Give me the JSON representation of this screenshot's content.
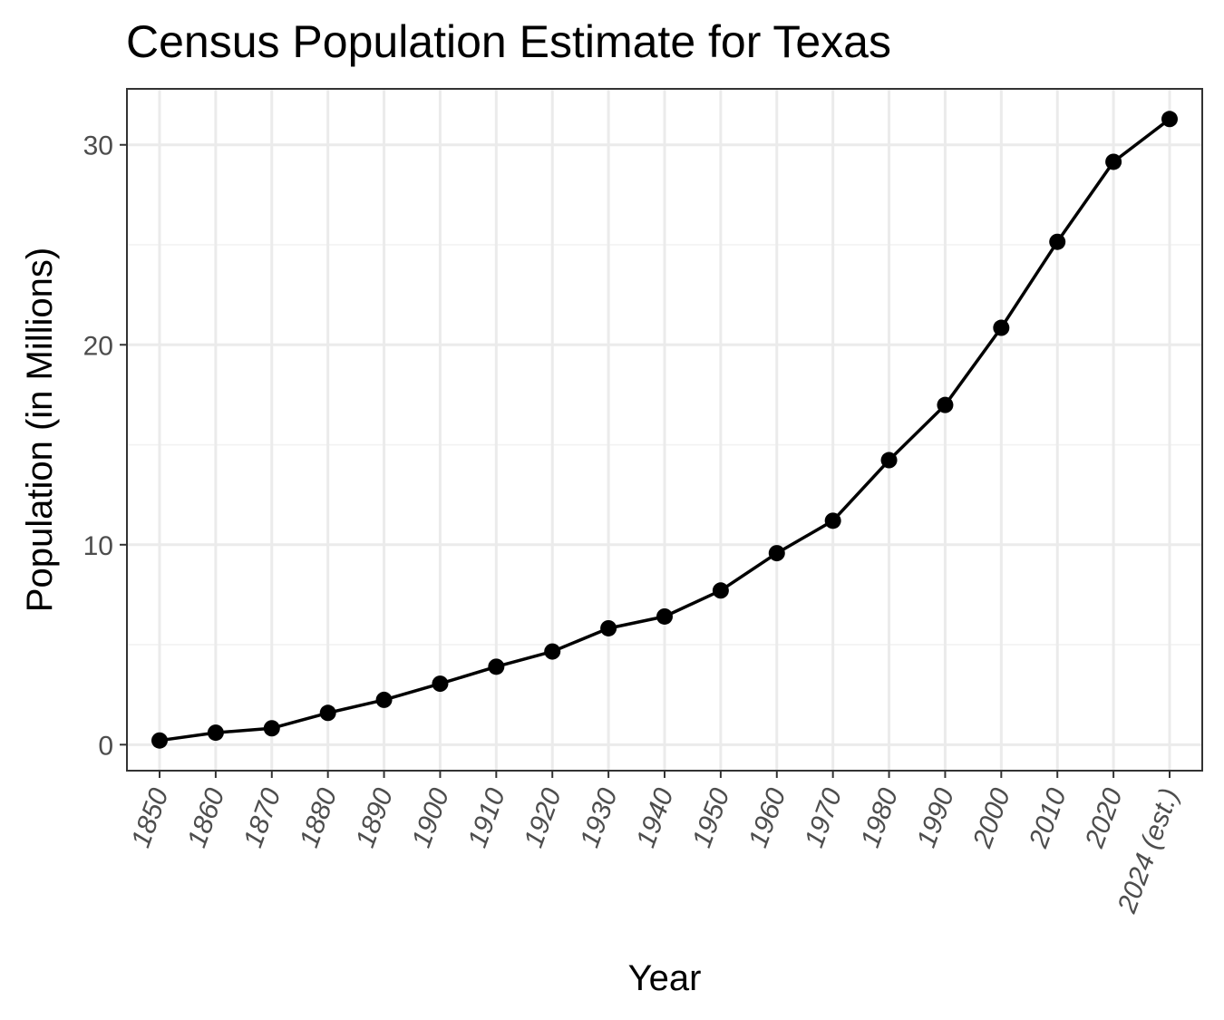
{
  "chart_data": {
    "type": "line",
    "title": "Census Population Estimate for Texas",
    "xlabel": "Year",
    "ylabel": "Population (in Millions)",
    "categories": [
      "1850",
      "1860",
      "1870",
      "1880",
      "1890",
      "1900",
      "1910",
      "1920",
      "1930",
      "1940",
      "1950",
      "1960",
      "1970",
      "1980",
      "1990",
      "2000",
      "2010",
      "2020",
      "2024 (est.)"
    ],
    "series": [
      {
        "name": "Population",
        "values": [
          0.21,
          0.6,
          0.82,
          1.59,
          2.24,
          3.05,
          3.9,
          4.66,
          5.82,
          6.41,
          7.71,
          9.58,
          11.2,
          14.23,
          16.99,
          20.85,
          25.15,
          29.15,
          31.29
        ]
      }
    ],
    "ylim": [
      -1.3,
      32.8
    ],
    "yticks": [
      0,
      10,
      20,
      30
    ],
    "grid": true,
    "legend": "none",
    "colors": {
      "line": "#000000",
      "points": "#000000",
      "grid": "#ebebeb",
      "tick_label": "#4d4d4d",
      "border": "#333333"
    }
  }
}
